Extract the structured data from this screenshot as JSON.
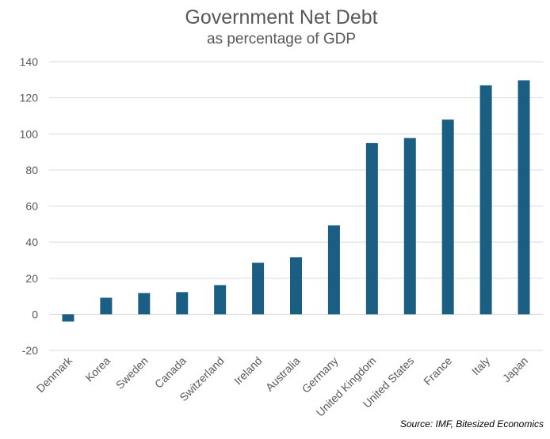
{
  "chart_data": {
    "type": "bar",
    "title": "Government Net Debt",
    "subtitle": "as percentage of GDP",
    "xlabel": "",
    "ylabel": "",
    "categories": [
      "Denmark",
      "Korea",
      "Sweden",
      "Canada",
      "Switzerland",
      "Ireland",
      "Australia",
      "Germany",
      "United Kingdom",
      "United States",
      "France",
      "Italy",
      "Japan"
    ],
    "values": [
      -4,
      9.2,
      11.8,
      12.3,
      16.2,
      28.6,
      31.6,
      49.3,
      94.9,
      97.7,
      107.9,
      126.9,
      129.7
    ],
    "ylim": [
      -20,
      140
    ],
    "yticks": [
      "-20",
      "0",
      "20",
      "40",
      "60",
      "80",
      "100",
      "120",
      "140"
    ],
    "grid": true,
    "legend": "none",
    "bar_color": "#1a5e84",
    "source": "Source: IMF, Bitesized Economics"
  }
}
